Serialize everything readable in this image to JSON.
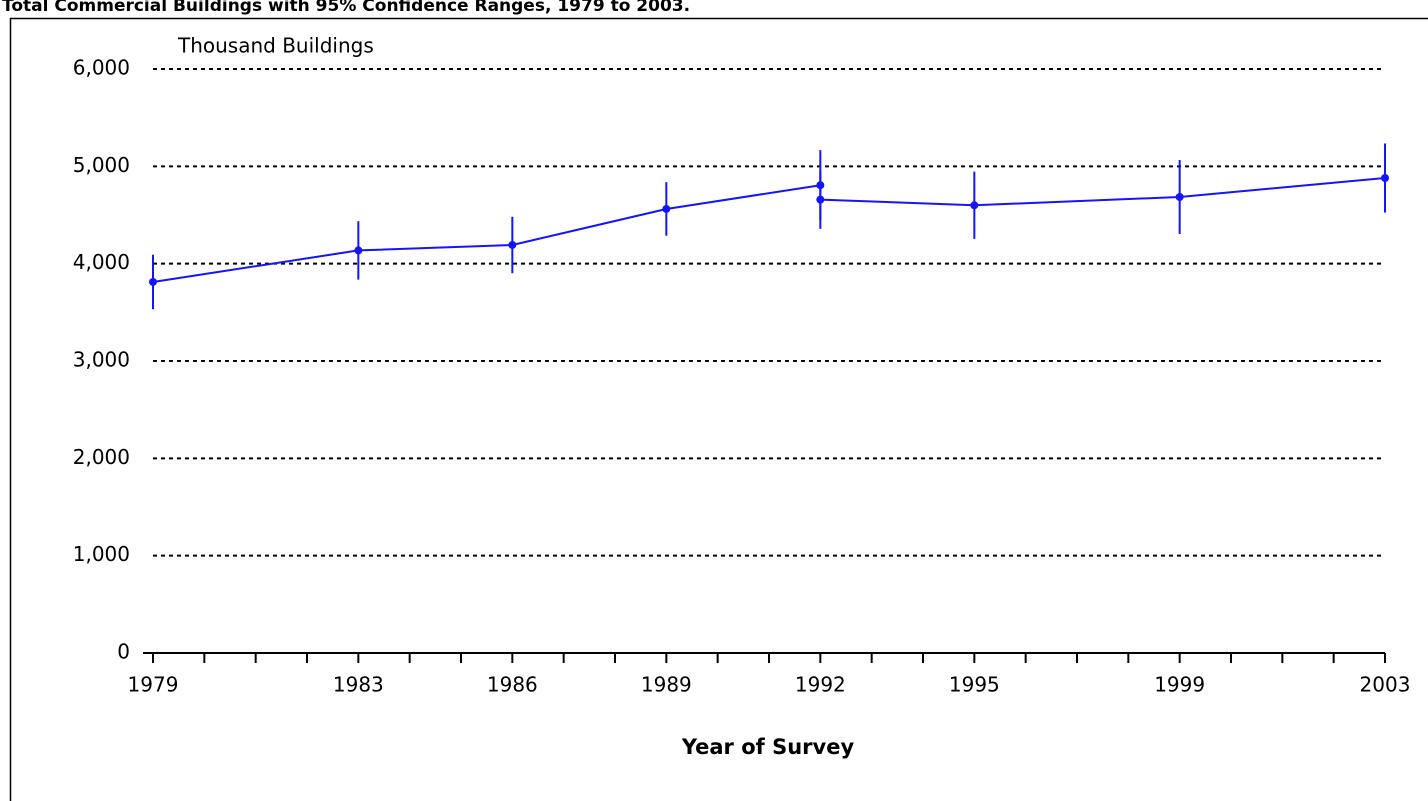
{
  "chart_data": {
    "type": "line",
    "title": "Total Commercial Buildings with 95% Confidence Ranges, 1979 to 2003.",
    "y_label": "Thousand Buildings",
    "x_label": "Year of Survey",
    "series": [
      {
        "color": "#1414ff",
        "x": [
          1979,
          1983,
          1986,
          1989,
          1992
        ],
        "values": [
          3812,
          4136,
          4192,
          4562,
          4806
        ],
        "errors": [
          280,
          300,
          290,
          275,
          360
        ]
      },
      {
        "color": "#1414ff",
        "x": [
          1992,
          1995,
          1999,
          2003
        ],
        "values": [
          4658,
          4600,
          4685,
          4880
        ],
        "errors": [
          300,
          345,
          380,
          355
        ]
      }
    ],
    "xlim": [
      1979,
      2003
    ],
    "xticks": [
      1979,
      1983,
      1986,
      1989,
      1992,
      1995,
      1999,
      2003
    ],
    "xminor": [
      1980,
      1981,
      1982,
      1984,
      1985,
      1987,
      1988,
      1990,
      1991,
      1993,
      1994,
      1996,
      1997,
      1998,
      2000,
      2001,
      2002
    ],
    "ylim": [
      0,
      6000
    ],
    "yticks": [
      0,
      {
        "value": 1000,
        "label": "1,000"
      },
      {
        "value": 2000,
        "label": "2,000"
      },
      {
        "value": 3000,
        "label": "3,000"
      },
      {
        "value": 4000,
        "label": "4,000"
      },
      {
        "value": 5000,
        "label": "5,000"
      },
      {
        "value": 6000,
        "label": "6,000"
      }
    ],
    "grid": true
  }
}
